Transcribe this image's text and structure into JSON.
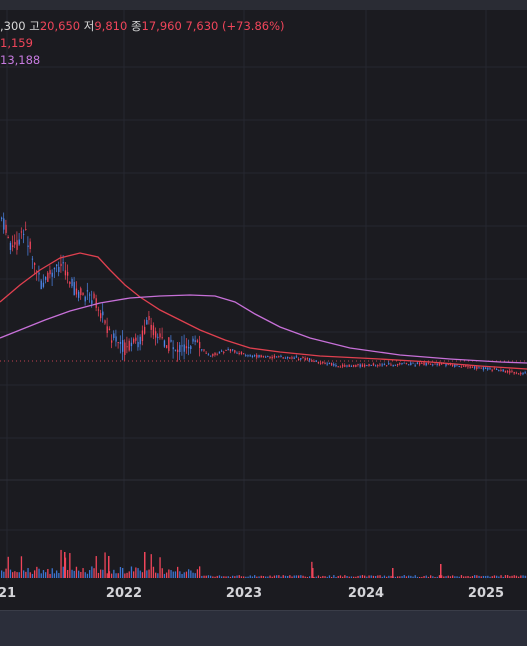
{
  "ohlc_legend": {
    "open_fragment": ",300",
    "high_label": "고",
    "high_value": "20,650",
    "low_label": "저",
    "low_value": "9,810",
    "close_label": "종",
    "close_value": "17,960",
    "change": "7,630 (+73.86%)"
  },
  "ma_short_value": "1,159",
  "ma_long_value": "13,188",
  "colors": {
    "background": "#1b1b20",
    "up": "#f0455a",
    "down": "#4d86e8",
    "ma_short": "#e0404f",
    "ma_long": "#c770d8",
    "volume_down": "#3d74d0"
  },
  "x_axis": {
    "labels": [
      "21",
      "2022",
      "2023",
      "2024",
      "2025"
    ]
  }
}
